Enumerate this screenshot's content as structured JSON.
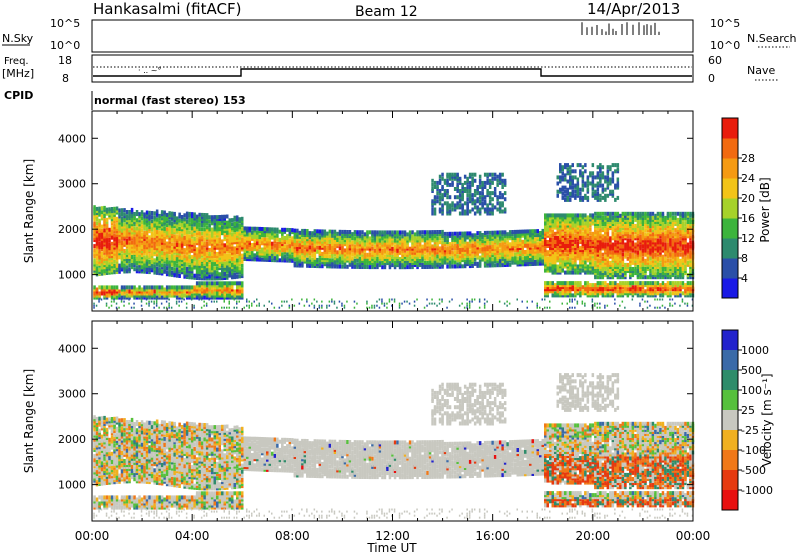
{
  "header": {
    "station": "Hankasalmi (fitACF)",
    "beam": "Beam 12",
    "date": "14/Apr/2013"
  },
  "noise_panel": {
    "left_label": "N.Sky",
    "right_label": "N.Search",
    "left_ticks": [
      "10^5",
      "10^0"
    ],
    "right_ticks": [
      "10^5",
      "10^0"
    ]
  },
  "freq_panel": {
    "left_label_1": "Freq.",
    "left_label_2": "[MHz]",
    "right_label": "Nave",
    "left_ticks": [
      "18",
      "8"
    ],
    "right_ticks": [
      "60",
      "0"
    ]
  },
  "cpid": {
    "label": "CPID",
    "text": "normal (fast stereo) 153"
  },
  "chart_data": [
    {
      "type": "heatmap",
      "title": "",
      "ylabel": "Slant Range [km]",
      "xlabel": "Time UT",
      "ylim": [
        200,
        4600
      ],
      "xlim": [
        0,
        24
      ],
      "x_ticks": [
        "00:00",
        "04:00",
        "08:00",
        "12:00",
        "16:00",
        "20:00",
        "00:00"
      ],
      "y_ticks": [
        "1000",
        "2000",
        "3000",
        "4000"
      ],
      "colorbar": {
        "label": "Power [dB]",
        "ticks": [
          "4",
          "8",
          "12",
          "16",
          "20",
          "24",
          "28"
        ],
        "colors": [
          "#1a1ae6",
          "#2a4fa8",
          "#2d8a6e",
          "#3cb43c",
          "#a6d22a",
          "#f2c418",
          "#f59a12",
          "#f26a10",
          "#e81c0c"
        ]
      },
      "bands": [
        {
          "t_start": 0,
          "t_end": 6,
          "range_km": [
            900,
            2600
          ],
          "level_db": 16
        },
        {
          "t_start": 6,
          "t_end": 18,
          "range_km": [
            1200,
            2000
          ],
          "level_db": 16
        },
        {
          "t_start": 18,
          "t_end": 24,
          "range_km": [
            800,
            2200
          ],
          "level_db": 24
        }
      ]
    },
    {
      "type": "heatmap",
      "title": "",
      "ylabel": "Slant Range [km]",
      "xlabel": "Time UT",
      "ylim": [
        200,
        4600
      ],
      "xlim": [
        0,
        24
      ],
      "x_ticks": [
        "00:00",
        "04:00",
        "08:00",
        "12:00",
        "16:00",
        "20:00",
        "00:00"
      ],
      "y_ticks": [
        "1000",
        "2000",
        "3000",
        "4000"
      ],
      "colorbar": {
        "label": "Velocity [m s⁻¹]",
        "ticks": [
          "1000",
          "500",
          "100",
          "25",
          "-25",
          "-100",
          "-500",
          "-1000"
        ],
        "colors": [
          "#2222cc",
          "#3a6aa8",
          "#2e8c6a",
          "#56c03c",
          "#c8c8c0",
          "#f0b020",
          "#f07818",
          "#e63a10",
          "#e81010"
        ]
      },
      "ground_scatter_color": "#c8c8c0"
    }
  ]
}
